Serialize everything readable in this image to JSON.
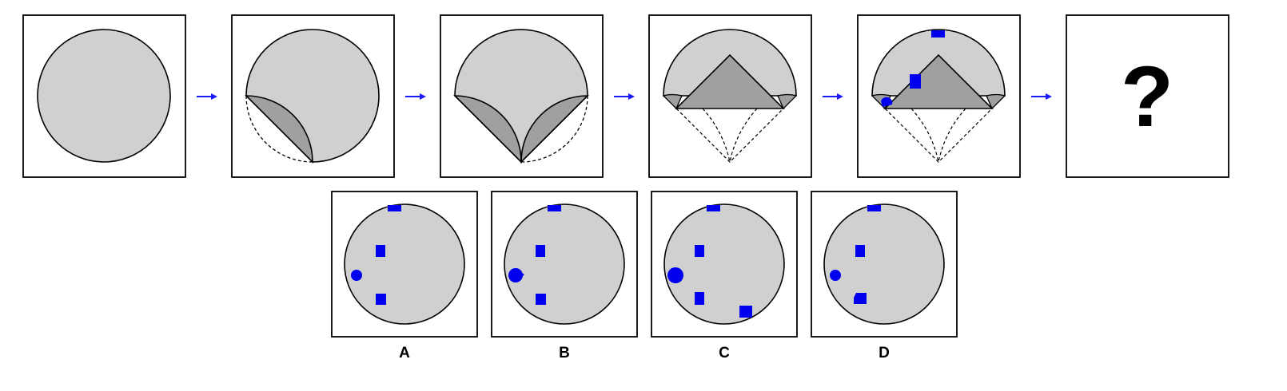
{
  "question_mark": "?",
  "colors": {
    "disc": "#d0d0d0",
    "fold": "#a0a0a0",
    "marker": "#0000ee",
    "arrow": "#1a1aff",
    "frame": "#000000"
  },
  "sequence": [
    {
      "name": "full-circle"
    },
    {
      "name": "one-fold"
    },
    {
      "name": "two-folds"
    },
    {
      "name": "triangle-fold"
    },
    {
      "name": "punched"
    },
    {
      "name": "unknown"
    }
  ],
  "options": [
    {
      "label": "A",
      "markers": [
        "top-square",
        "upper-square",
        "small-left-dot",
        "lower-square"
      ]
    },
    {
      "label": "B",
      "markers": [
        "top-square",
        "upper-square",
        "notched-left-dot",
        "lower-square"
      ]
    },
    {
      "label": "C",
      "markers": [
        "top-square",
        "upper-square",
        "large-left-dot",
        "lower-square",
        "bottom-right-square"
      ]
    },
    {
      "label": "D",
      "markers": [
        "top-square",
        "upper-square",
        "small-left-dot",
        "notched-lower-square"
      ]
    }
  ]
}
